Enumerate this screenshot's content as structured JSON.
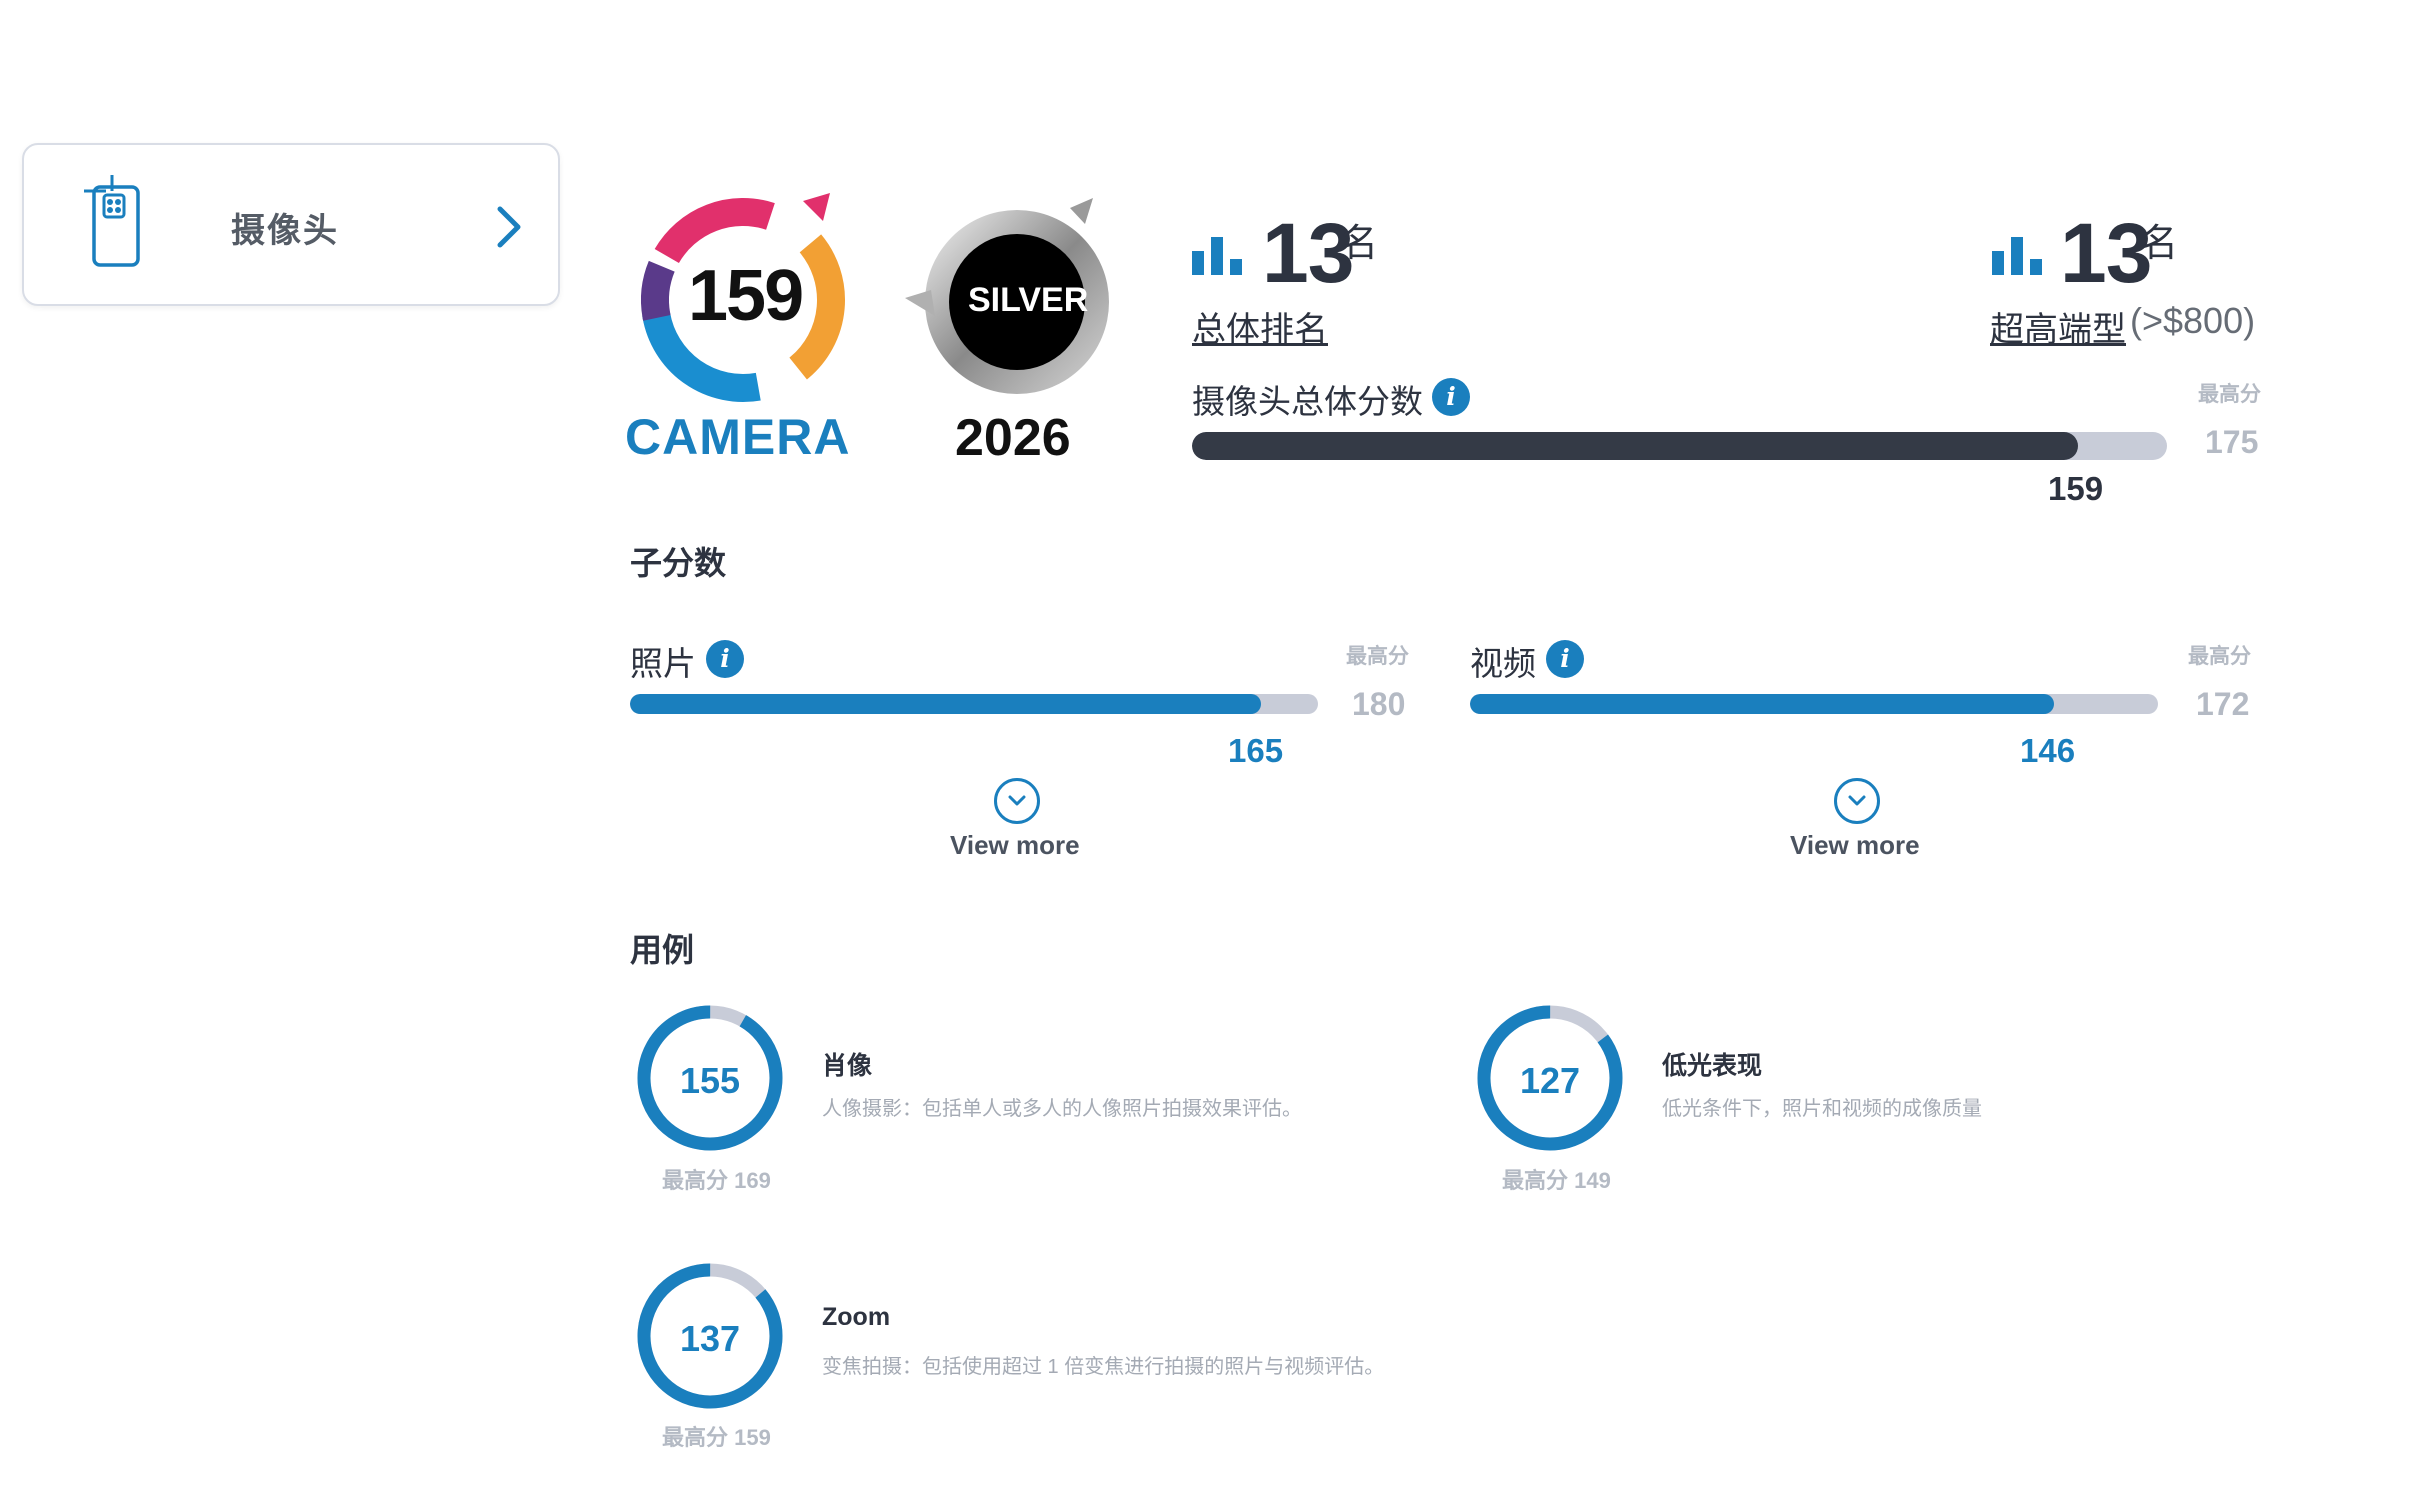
{
  "tab": {
    "label": "摄像头",
    "icon": "phone-camera-icon"
  },
  "badges": {
    "camera": {
      "score": "159",
      "label": "CAMERA"
    },
    "silver": {
      "label": "SILVER",
      "year": "2026"
    }
  },
  "rankings": {
    "overall": {
      "number": "13",
      "suffix": "名",
      "label": "总体排名"
    },
    "segment": {
      "number": "13",
      "suffix": "名",
      "label": "超高端型",
      "extra": "(>$800)"
    }
  },
  "overall_score": {
    "title": "摄像头总体分数",
    "value": 159,
    "max": 175,
    "max_label": "最高分",
    "max_value": "175",
    "value_text": "159"
  },
  "subscores": {
    "title": "子分数",
    "items": [
      {
        "label": "照片",
        "value": 165,
        "max": 180,
        "max_label": "最高分",
        "max_value": "180",
        "value_text": "165",
        "view_more": "View more"
      },
      {
        "label": "视频",
        "value": 146,
        "max": 172,
        "max_label": "最高分",
        "max_value": "172",
        "value_text": "146",
        "view_more": "View more"
      }
    ]
  },
  "use_cases": {
    "title": "用例",
    "items": [
      {
        "score": 155,
        "max": 169,
        "score_text": "155",
        "max_text": "最高分 169",
        "title": "肖像",
        "desc": "人像摄影：包括单人或多人的人像照片拍摄效果评估。"
      },
      {
        "score": 127,
        "max": 149,
        "score_text": "127",
        "max_text": "最高分 149",
        "title": "低光表现",
        "desc": "低光条件下，照片和视频的成像质量"
      },
      {
        "score": 137,
        "max": 159,
        "score_text": "137",
        "max_text": "最高分 159",
        "title": "Zoom",
        "desc": "变焦拍摄：包括使用超过 1 倍变焦进行拍摄的照片与视频评估。"
      }
    ]
  },
  "colors": {
    "accent": "#1a7fbe",
    "dark_bar": "#343a46",
    "track": "#c8ccd8",
    "muted": "#b4bac4"
  }
}
